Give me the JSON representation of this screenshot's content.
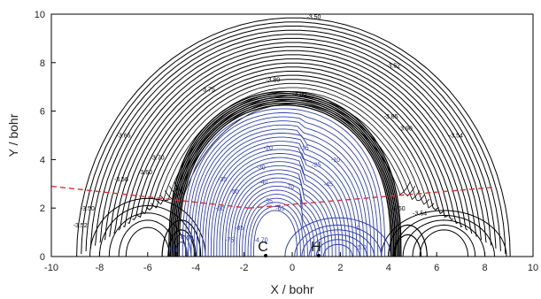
{
  "chart_data": {
    "type": "contour",
    "xlabel": "X / bohr",
    "ylabel": "Y / bohr",
    "xlim": [
      -10,
      10
    ],
    "ylim": [
      0,
      10
    ],
    "x_ticks": [
      "-10",
      "-8",
      "-6",
      "-4",
      "-2",
      "0",
      "2",
      "4",
      "6",
      "8",
      "10"
    ],
    "y_ticks": [
      "0",
      "2",
      "4",
      "6",
      "8",
      "10"
    ],
    "grid": false,
    "colors": {
      "negative_contours": "#000000",
      "positive_contours": "#2f3fb0",
      "dividing_line": "#e03030"
    },
    "atoms": [
      {
        "label": "C",
        "x": -1.1,
        "y": 0.0
      },
      {
        "label": "H",
        "x": 1.1,
        "y": 0.0
      }
    ],
    "contour_labels_negative": [
      {
        "text": "-3.50",
        "x": 0.9,
        "y": 9.8
      },
      {
        "text": "-3.52",
        "x": 4.2,
        "y": 7.8
      },
      {
        "text": "-3.54",
        "x": 6.8,
        "y": 4.9
      },
      {
        "text": "-3.56",
        "x": -7.1,
        "y": 3.1
      },
      {
        "text": "-3.60",
        "x": -6.1,
        "y": 3.4
      },
      {
        "text": "-3.65",
        "x": -7.0,
        "y": 4.9
      },
      {
        "text": "-3.70",
        "x": -5.6,
        "y": 4.0
      },
      {
        "text": "-3.75",
        "x": -3.5,
        "y": 6.8
      },
      {
        "text": "-3.80",
        "x": -0.8,
        "y": 7.2
      },
      {
        "text": "-4.00",
        "x": 0.3,
        "y": 6.6
      },
      {
        "text": "-3.85",
        "x": 4.1,
        "y": 5.7
      },
      {
        "text": "-3.90",
        "x": 4.7,
        "y": 5.2
      },
      {
        "text": "-3.50",
        "x": -8.5,
        "y": 1.9
      },
      {
        "text": "-3.52",
        "x": -8.8,
        "y": 1.2
      },
      {
        "text": "-3.50",
        "x": 4.4,
        "y": 1.9
      },
      {
        "text": "-3.54",
        "x": 5.3,
        "y": 1.7
      }
    ],
    "contour_labels_positive": [
      {
        "text": "-20",
        "x": -1.0,
        "y": 4.4
      },
      {
        "text": "-15",
        "x": 0.5,
        "y": 4.4
      },
      {
        "text": "-10",
        "x": 1.8,
        "y": 3.9
      },
      {
        "text": "-25",
        "x": 1.0,
        "y": 3.7
      },
      {
        "text": "-30",
        "x": -1.3,
        "y": 3.6
      },
      {
        "text": "-35",
        "x": -2.9,
        "y": 3.1
      },
      {
        "text": "-40",
        "x": -1.2,
        "y": 3.0
      },
      {
        "text": "-45",
        "x": 1.5,
        "y": 2.9
      },
      {
        "text": "-50",
        "x": -2.4,
        "y": 2.6
      },
      {
        "text": "-55",
        "x": -1.0,
        "y": 2.2
      },
      {
        "text": "-60",
        "x": -3.0,
        "y": 1.9
      },
      {
        "text": "-65",
        "x": -0.5,
        "y": 1.9
      },
      {
        "text": "-70",
        "x": -0.1,
        "y": 2.8
      },
      {
        "text": "-75",
        "x": -2.6,
        "y": 0.6
      },
      {
        "text": "-85",
        "x": -2.2,
        "y": 1.1
      },
      {
        "text": "-4.70",
        "x": -1.3,
        "y": 0.6
      },
      {
        "text": "-4.50",
        "x": -4.4,
        "y": 0.7
      },
      {
        "text": "5.0",
        "x": -4.9,
        "y": 0.2
      },
      {
        "text": "5.0",
        "x": 2.9,
        "y": 0.3
      },
      {
        "text": "-0",
        "x": 2.7,
        "y": 1.1
      }
    ]
  }
}
